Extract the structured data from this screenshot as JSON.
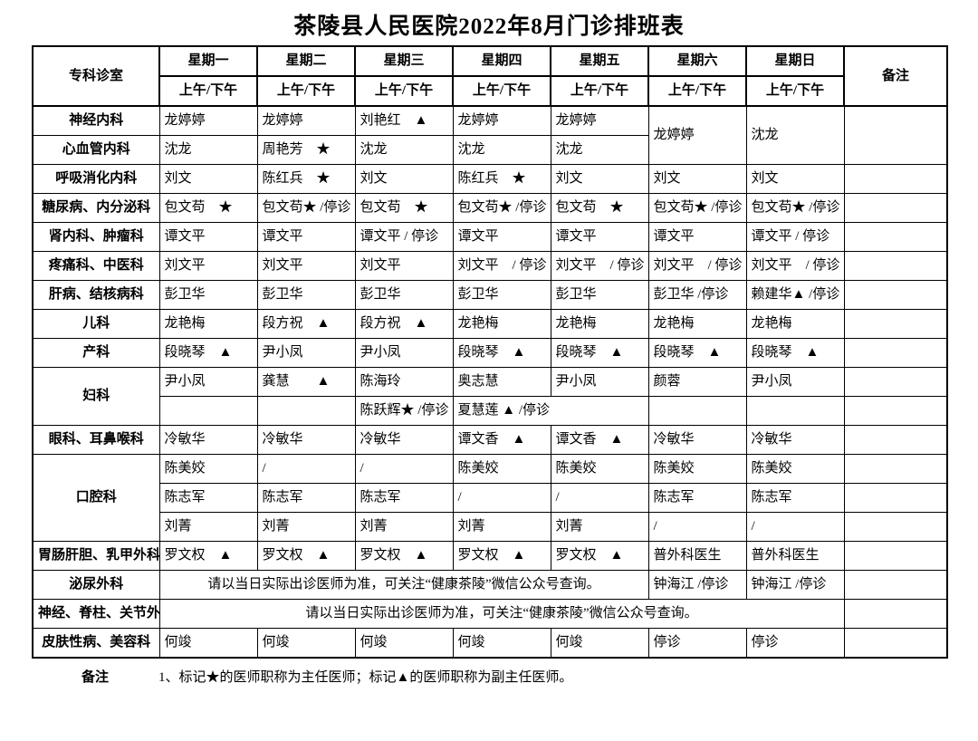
{
  "title": "茶陵县人民医院2022年8月门诊排班表",
  "table": {
    "corner_header": "专科诊室",
    "day_headers": [
      "星期一",
      "星期二",
      "星期三",
      "星期四",
      "星期五",
      "星期六",
      "星期日"
    ],
    "sub_header": "上午/下午",
    "remark_header": "备注",
    "rows": [
      {
        "cells": [
          {
            "t": "神经内科",
            "type": "dept"
          },
          {
            "t": "龙婷婷"
          },
          {
            "t": "龙婷婷"
          },
          {
            "t": "刘艳红　▲"
          },
          {
            "t": "龙婷婷"
          },
          {
            "t": "龙婷婷"
          },
          {
            "t": "龙婷婷",
            "rs": 2
          },
          {
            "t": "沈龙",
            "rs": 2
          },
          {
            "t": "",
            "rs": 2
          }
        ]
      },
      {
        "cells": [
          {
            "t": "心血管内科",
            "type": "dept"
          },
          {
            "t": "沈龙"
          },
          {
            "t": "周艳芳　★"
          },
          {
            "t": "沈龙"
          },
          {
            "t": "沈龙"
          },
          {
            "t": "沈龙"
          }
        ]
      },
      {
        "cells": [
          {
            "t": "呼吸消化内科",
            "type": "dept"
          },
          {
            "t": "刘文"
          },
          {
            "t": "陈红兵　★"
          },
          {
            "t": "刘文"
          },
          {
            "t": "陈红兵　★"
          },
          {
            "t": "刘文"
          },
          {
            "t": "刘文"
          },
          {
            "t": "刘文"
          },
          {
            "t": ""
          }
        ]
      },
      {
        "cells": [
          {
            "t": "糖尿病、内分泌科",
            "type": "dept"
          },
          {
            "t": "包文苟　★"
          },
          {
            "t": "包文苟★ /停诊"
          },
          {
            "t": "包文苟　★"
          },
          {
            "t": "包文苟★ /停诊"
          },
          {
            "t": "包文苟　★"
          },
          {
            "t": "包文苟★ /停诊"
          },
          {
            "t": "包文苟★ /停诊"
          },
          {
            "t": ""
          }
        ]
      },
      {
        "cells": [
          {
            "t": "肾内科、肿瘤科",
            "type": "dept"
          },
          {
            "t": "谭文平"
          },
          {
            "t": "谭文平"
          },
          {
            "t": "谭文平 / 停诊"
          },
          {
            "t": "谭文平"
          },
          {
            "t": "谭文平"
          },
          {
            "t": "谭文平"
          },
          {
            "t": "谭文平 / 停诊"
          },
          {
            "t": ""
          }
        ]
      },
      {
        "cells": [
          {
            "t": "疼痛科、中医科",
            "type": "dept"
          },
          {
            "t": "刘文平"
          },
          {
            "t": "刘文平"
          },
          {
            "t": "刘文平"
          },
          {
            "t": "刘文平　/ 停诊"
          },
          {
            "t": "刘文平　/ 停诊"
          },
          {
            "t": "刘文平　/ 停诊"
          },
          {
            "t": "刘文平　/ 停诊"
          },
          {
            "t": ""
          }
        ]
      },
      {
        "cells": [
          {
            "t": "肝病、结核病科",
            "type": "dept"
          },
          {
            "t": "彭卫华"
          },
          {
            "t": "彭卫华"
          },
          {
            "t": "彭卫华"
          },
          {
            "t": "彭卫华"
          },
          {
            "t": "彭卫华"
          },
          {
            "t": "彭卫华 /停诊"
          },
          {
            "t": "赖建华▲ /停诊"
          },
          {
            "t": ""
          }
        ]
      },
      {
        "cells": [
          {
            "t": "儿科",
            "type": "dept"
          },
          {
            "t": "龙艳梅"
          },
          {
            "t": "段方祝　▲"
          },
          {
            "t": "段方祝　▲"
          },
          {
            "t": "龙艳梅"
          },
          {
            "t": "龙艳梅"
          },
          {
            "t": "龙艳梅"
          },
          {
            "t": "龙艳梅"
          },
          {
            "t": ""
          }
        ]
      },
      {
        "cells": [
          {
            "t": "产科",
            "type": "dept"
          },
          {
            "t": "段晓琴　▲"
          },
          {
            "t": "尹小凤"
          },
          {
            "t": "尹小凤"
          },
          {
            "t": "段晓琴　▲"
          },
          {
            "t": "段晓琴　▲"
          },
          {
            "t": "段晓琴　▲"
          },
          {
            "t": "段晓琴　▲"
          },
          {
            "t": ""
          }
        ]
      },
      {
        "cells": [
          {
            "t": "妇科",
            "type": "dept",
            "rs": 2
          },
          {
            "t": "尹小凤"
          },
          {
            "t": "龚慧　　▲"
          },
          {
            "t": "陈海玲"
          },
          {
            "t": "奥志慧"
          },
          {
            "t": "尹小凤"
          },
          {
            "t": "颜蓉"
          },
          {
            "t": "尹小凤"
          },
          {
            "t": ""
          }
        ]
      },
      {
        "cells": [
          {
            "t": ""
          },
          {
            "t": ""
          },
          {
            "t": "陈跃辉★ /停诊"
          },
          {
            "t": "夏慧莲 ▲ /停诊",
            "cs": 2
          },
          {
            "t": ""
          },
          {
            "t": ""
          },
          {
            "t": ""
          }
        ]
      },
      {
        "cells": [
          {
            "t": "眼科、耳鼻喉科",
            "type": "dept"
          },
          {
            "t": "冷敏华"
          },
          {
            "t": "冷敏华"
          },
          {
            "t": "冷敏华"
          },
          {
            "t": "谭文香　▲"
          },
          {
            "t": "谭文香　▲"
          },
          {
            "t": "冷敏华"
          },
          {
            "t": "冷敏华"
          },
          {
            "t": ""
          }
        ]
      },
      {
        "cells": [
          {
            "t": "口腔科",
            "type": "dept",
            "rs": 3
          },
          {
            "t": "陈美姣"
          },
          {
            "t": "/"
          },
          {
            "t": "/"
          },
          {
            "t": "陈美姣"
          },
          {
            "t": "陈美姣"
          },
          {
            "t": "陈美姣"
          },
          {
            "t": "陈美姣"
          },
          {
            "t": ""
          }
        ]
      },
      {
        "cells": [
          {
            "t": "陈志军"
          },
          {
            "t": "陈志军"
          },
          {
            "t": "陈志军"
          },
          {
            "t": "/"
          },
          {
            "t": "/"
          },
          {
            "t": "陈志军"
          },
          {
            "t": "陈志军"
          },
          {
            "t": ""
          }
        ]
      },
      {
        "cells": [
          {
            "t": "刘菁"
          },
          {
            "t": "刘菁"
          },
          {
            "t": "刘菁"
          },
          {
            "t": "刘菁"
          },
          {
            "t": "刘菁"
          },
          {
            "t": "/"
          },
          {
            "t": "/"
          },
          {
            "t": ""
          }
        ]
      },
      {
        "cells": [
          {
            "t": "胃肠肝胆、乳甲外科",
            "type": "dept"
          },
          {
            "t": "罗文权　▲"
          },
          {
            "t": "罗文权　▲"
          },
          {
            "t": "罗文权　▲"
          },
          {
            "t": "罗文权　▲"
          },
          {
            "t": "罗文权　▲"
          },
          {
            "t": "普外科医生"
          },
          {
            "t": "普外科医生"
          },
          {
            "t": ""
          }
        ]
      },
      {
        "cells": [
          {
            "t": "泌尿外科",
            "type": "dept"
          },
          {
            "t": "请以当日实际出诊医师为准，可关注“健康茶陵”微信公众号查询。",
            "cs": 5,
            "type": "notice"
          },
          {
            "t": "钟海江 /停诊"
          },
          {
            "t": "钟海江 /停诊"
          },
          {
            "t": ""
          }
        ]
      },
      {
        "cells": [
          {
            "t": "神经、脊柱、关节外科、 骨科、胸外科",
            "type": "dept"
          },
          {
            "t": "请以当日实际出诊医师为准，可关注“健康茶陵”微信公众号查询。",
            "cs": 7,
            "type": "notice"
          },
          {
            "t": ""
          }
        ]
      },
      {
        "cells": [
          {
            "t": "皮肤性病、美容科",
            "type": "dept"
          },
          {
            "t": "何竣"
          },
          {
            "t": "何竣"
          },
          {
            "t": "何竣"
          },
          {
            "t": "何竣"
          },
          {
            "t": "何竣"
          },
          {
            "t": "停诊"
          },
          {
            "t": "停诊"
          },
          {
            "t": ""
          }
        ]
      }
    ]
  },
  "footer": {
    "label": "备注",
    "note": "1、标记★的医师职称为主任医师；标记▲的医师职称为副主任医师。"
  }
}
